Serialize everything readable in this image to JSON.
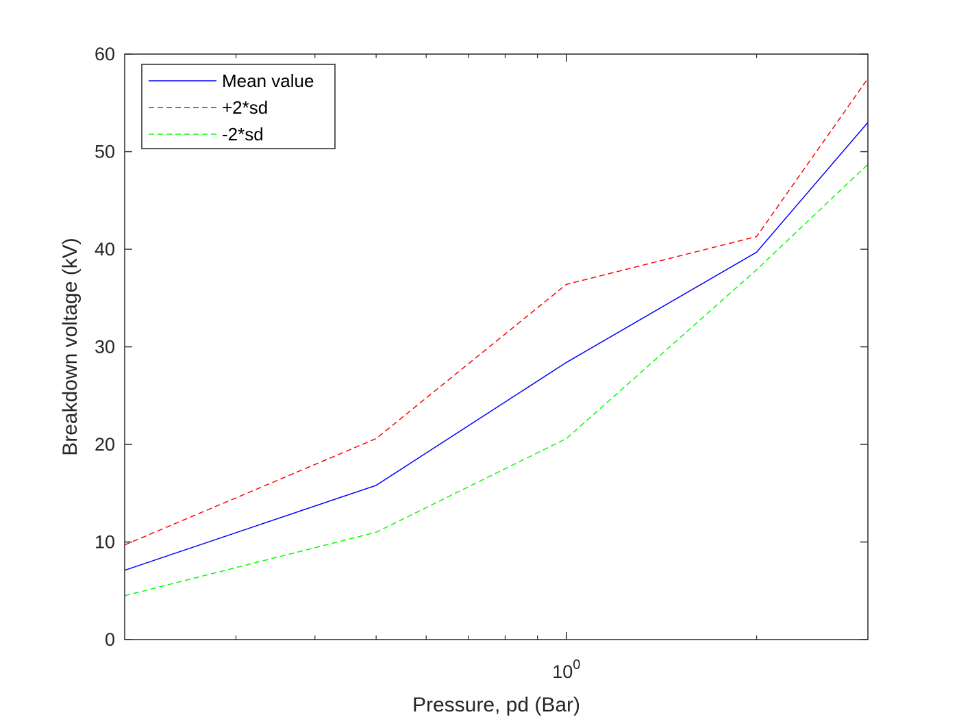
{
  "chart_data": {
    "type": "line",
    "xscale": "log",
    "x": [
      0.2,
      0.5,
      1,
      2,
      3
    ],
    "xlim": [
      0.2,
      3
    ],
    "ylim": [
      0,
      60
    ],
    "xlabel": "Pressure, pd (Bar)",
    "ylabel": "Breakdown voltage (kV)",
    "x_ticks": [
      {
        "value": 1,
        "base": "10",
        "exp": "0"
      }
    ],
    "y_ticks": [
      0,
      10,
      20,
      30,
      40,
      50,
      60
    ],
    "legend_position": "top-left",
    "grid": false,
    "series": [
      {
        "name": "Mean value",
        "values": [
          7.1,
          15.8,
          28.4,
          39.7,
          53.0
        ],
        "color": "#0000ff",
        "dash": "solid"
      },
      {
        "name": "+2*sd",
        "values": [
          9.7,
          20.6,
          36.4,
          41.3,
          57.5
        ],
        "color": "#ff0000",
        "dash": "dashed"
      },
      {
        "name": "-2*sd",
        "values": [
          4.5,
          11.0,
          20.6,
          37.9,
          48.7
        ],
        "color": "#00ff00",
        "dash": "dashed"
      }
    ]
  }
}
